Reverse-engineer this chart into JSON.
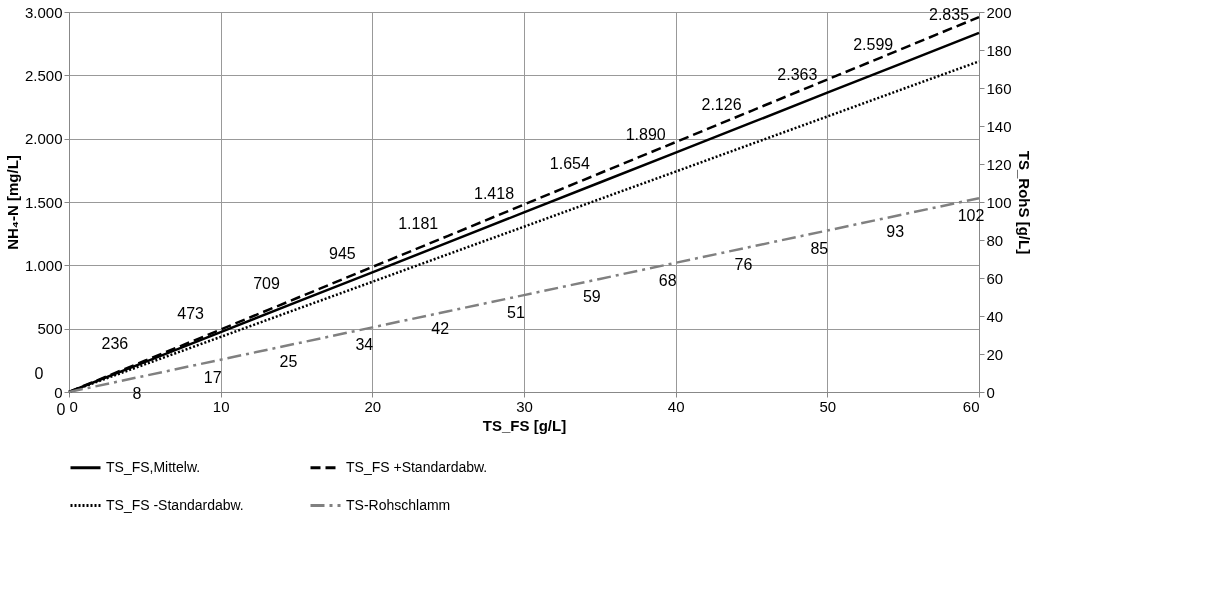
{
  "chart_data": {
    "type": "line",
    "x": [
      0,
      5,
      10,
      15,
      20,
      25,
      30,
      35,
      40,
      45,
      50,
      55,
      60
    ],
    "xlabel": "TS_FS [g/L]",
    "ylabel": "NH₄-N [mg/L]",
    "y2label": "TS_RohS [g/L]",
    "xlim": [
      0,
      60
    ],
    "xticks": [
      0,
      10,
      20,
      30,
      40,
      50,
      60
    ],
    "ylim": [
      0,
      3000
    ],
    "yticks": [
      {
        "value": 0,
        "label": "0"
      },
      {
        "value": 500,
        "label": "500"
      },
      {
        "value": 1000,
        "label": "1.000"
      },
      {
        "value": 1500,
        "label": "1.500"
      },
      {
        "value": 2000,
        "label": "2.000"
      },
      {
        "value": 2500,
        "label": "2.500"
      },
      {
        "value": 3000,
        "label": "3.000"
      }
    ],
    "y2lim": [
      0,
      200
    ],
    "y2ticks": [
      0,
      20,
      40,
      60,
      80,
      100,
      120,
      140,
      160,
      180,
      200
    ],
    "grid": true,
    "legend": "bottom",
    "marker": "none",
    "series": [
      {
        "name": "TS_FS,Mittelw.",
        "color": "#000000",
        "line_style": "solid",
        "values": [
          0,
          236,
          473,
          709,
          945,
          1181,
          1418,
          1654,
          1890,
          2126,
          2363,
          2599,
          2835
        ],
        "value_labels": [
          "0",
          "236",
          "473",
          "709",
          "945",
          "1.181",
          "1.418",
          "1.654",
          "1.890",
          "2.126",
          "2.363",
          "2.599",
          "2.835"
        ]
      },
      {
        "name": "TS_FS +Standardabw.",
        "color": "#000000",
        "line_style": "dashed",
        "values": [
          0,
          247,
          493,
          740,
          987,
          1233,
          1480,
          1727,
          1973,
          2220,
          2467,
          2713,
          2960
        ]
      },
      {
        "name": "TS_FS -Standardabw.",
        "color": "#000000",
        "line_style": "dotted",
        "values": [
          0,
          218,
          435,
          653,
          870,
          1088,
          1305,
          1523,
          1740,
          1958,
          2175,
          2393,
          2610
        ]
      },
      {
        "name": "TS-Rohschlamm",
        "color": "#808080",
        "line_style": "dashdot",
        "axis": "y2",
        "values": [
          0,
          8.5,
          17,
          25.5,
          34,
          42.5,
          51,
          59.5,
          68,
          76.5,
          85,
          93.5,
          102
        ],
        "value_labels": [
          "0",
          "8",
          "17",
          "25",
          "34",
          "42",
          "51",
          "59",
          "68",
          "76",
          "85",
          "93",
          "102"
        ]
      }
    ]
  }
}
